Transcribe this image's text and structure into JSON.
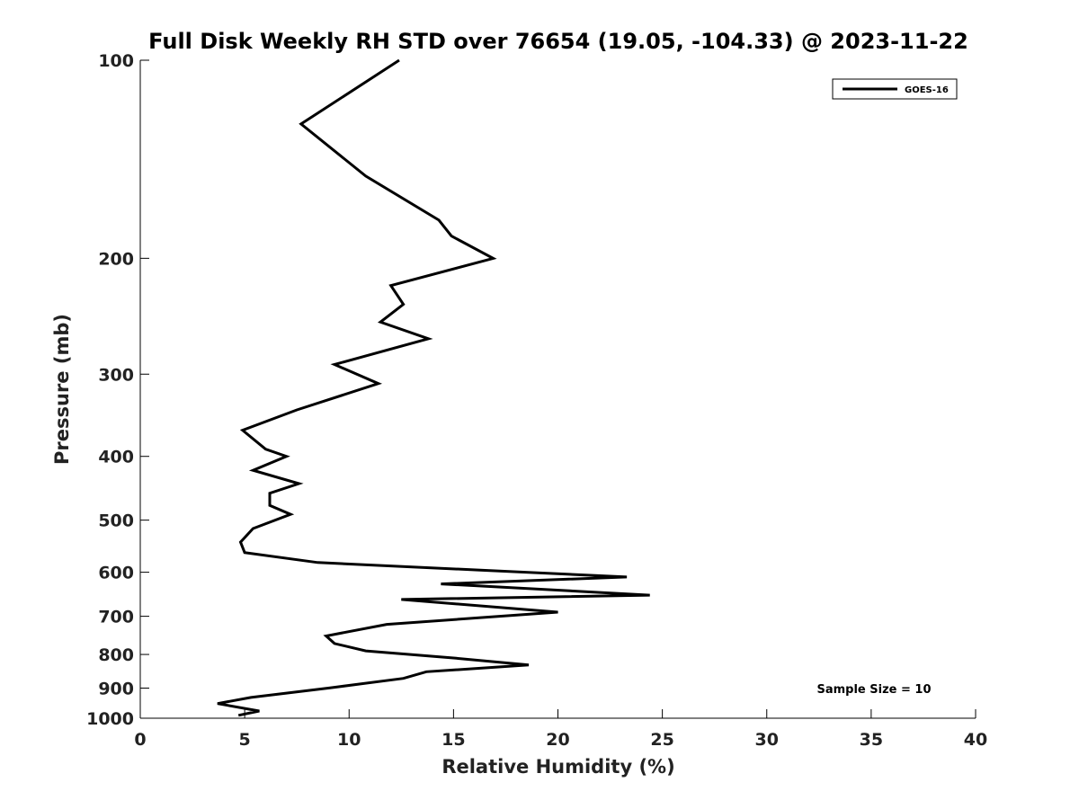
{
  "chart_data": {
    "type": "line",
    "title": "Full Disk Weekly RH STD over 76654 (19.05, -104.33) @ 2023-11-22",
    "xlabel": "Relative Humidity (%)",
    "ylabel": "Pressure (mb)",
    "xlim": [
      0,
      40
    ],
    "ylim": [
      1000,
      100
    ],
    "yscale": "log",
    "xticks": [
      0,
      5,
      10,
      15,
      20,
      25,
      30,
      35,
      40
    ],
    "xtick_labels": [
      "0",
      "5",
      "10",
      "15",
      "20",
      "25",
      "30",
      "35",
      "40"
    ],
    "yticks": [
      100,
      200,
      300,
      400,
      500,
      600,
      700,
      800,
      900,
      1000
    ],
    "ytick_labels": [
      "100",
      "200",
      "300",
      "400",
      "500",
      "600",
      "700",
      "800",
      "900",
      "1000"
    ],
    "grid": false,
    "legend_position": "top-right",
    "annotation": "Sample Size = 10",
    "line_color": "#000000",
    "series": [
      {
        "name": "GOES-16",
        "x": [
          12.4,
          7.7,
          10.8,
          14.3,
          14.9,
          16.9,
          12.0,
          12.6,
          11.5,
          13.8,
          9.3,
          11.4,
          7.5,
          4.9,
          6.0,
          7.0,
          5.4,
          7.6,
          6.2,
          6.2,
          7.2,
          5.4,
          4.8,
          5.0,
          8.5,
          23.3,
          14.4,
          24.4,
          12.5,
          20.0,
          11.8,
          8.9,
          9.3,
          10.8,
          15.0,
          18.6,
          13.7,
          12.6,
          9.0,
          5.3,
          3.7,
          5.7,
          4.7
        ],
        "y": [
          100,
          125,
          150,
          175,
          185,
          200,
          220,
          235,
          250,
          265,
          290,
          310,
          340,
          365,
          390,
          400,
          420,
          440,
          455,
          475,
          490,
          515,
          540,
          560,
          580,
          610,
          625,
          650,
          660,
          690,
          720,
          750,
          770,
          790,
          810,
          830,
          850,
          870,
          900,
          930,
          950,
          975,
          990
        ]
      }
    ]
  }
}
